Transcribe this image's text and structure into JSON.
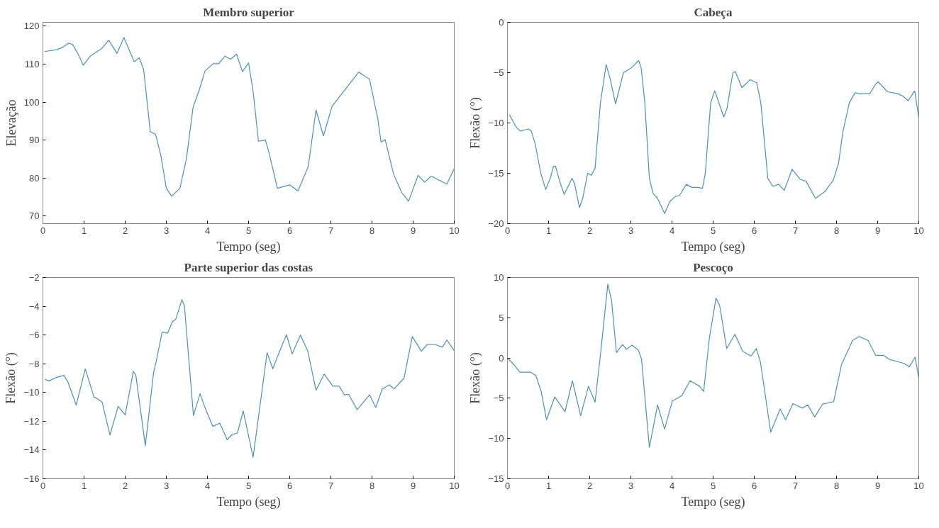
{
  "chart_data": [
    {
      "type": "line",
      "title": "Membro superior",
      "xlabel": "Tempo (seg)",
      "ylabel": "Elevação",
      "xlim": [
        0,
        10
      ],
      "xticks": [
        0,
        1,
        2,
        3,
        4,
        5,
        6,
        7,
        8,
        9,
        10
      ],
      "ylim": [
        68,
        121
      ],
      "yticks": [
        70,
        80,
        90,
        100,
        110,
        120
      ],
      "color": "#4a90b8",
      "x": [
        0.04,
        0.33,
        0.46,
        0.62,
        0.72,
        0.85,
        0.98,
        1.15,
        1.44,
        1.6,
        1.8,
        1.97,
        2.22,
        2.34,
        2.45,
        2.61,
        2.74,
        2.87,
        3.0,
        3.13,
        3.33,
        3.49,
        3.65,
        3.81,
        3.94,
        4.14,
        4.27,
        4.43,
        4.56,
        4.71,
        4.85,
        5.0,
        5.11,
        5.24,
        5.41,
        5.5,
        5.7,
        6.0,
        6.2,
        6.45,
        6.64,
        6.82,
        7.03,
        7.36,
        7.68,
        7.94,
        8.14,
        8.22,
        8.32,
        8.53,
        8.72,
        8.89,
        9.12,
        9.28,
        9.44,
        9.82,
        10.0
      ],
      "values": [
        113.3,
        113.8,
        114.3,
        115.5,
        115.2,
        112.8,
        109.7,
        112.1,
        114.2,
        116.3,
        112.8,
        117,
        110.6,
        111.7,
        108.5,
        92.2,
        91.5,
        85.8,
        77.3,
        75.2,
        77.3,
        85.1,
        98.6,
        103.5,
        108.2,
        110.1,
        110.1,
        112.1,
        111.3,
        112.6,
        108,
        110.3,
        102.8,
        89.7,
        90,
        86.5,
        77.3,
        78.2,
        76.6,
        83,
        97.9,
        91.1,
        98.9,
        103.5,
        107.9,
        106,
        95.7,
        89.5,
        90.1,
        80.9,
        76.2,
        73.9,
        80.7,
        78.9,
        80.5,
        78.4,
        82.5
      ]
    },
    {
      "type": "line",
      "title": "Cabeça",
      "xlabel": "Tempo (seg)",
      "ylabel": "Flexão (°)",
      "xlim": [
        0,
        10
      ],
      "xticks": [
        0,
        1,
        2,
        3,
        4,
        5,
        6,
        7,
        8,
        9,
        10
      ],
      "ylim": [
        -20,
        0
      ],
      "yticks": [
        -20,
        -15,
        -10,
        -5,
        0
      ],
      "color": "#4a90b8",
      "x": [
        0.05,
        0.21,
        0.31,
        0.51,
        0.58,
        0.67,
        0.81,
        0.93,
        1.04,
        1.12,
        1.17,
        1.27,
        1.38,
        1.57,
        1.63,
        1.75,
        1.83,
        1.95,
        2.04,
        2.13,
        2.26,
        2.4,
        2.49,
        2.63,
        2.82,
        3.02,
        3.19,
        3.25,
        3.34,
        3.45,
        3.54,
        3.65,
        3.82,
        3.95,
        4.08,
        4.18,
        4.35,
        4.48,
        4.64,
        4.74,
        4.81,
        4.94,
        5.04,
        5.14,
        5.26,
        5.34,
        5.48,
        5.54,
        5.7,
        5.9,
        6.06,
        6.16,
        6.33,
        6.45,
        6.59,
        6.73,
        6.92,
        7.12,
        7.26,
        7.49,
        7.72,
        7.92,
        8.05,
        8.15,
        8.31,
        8.45,
        8.58,
        8.81,
        8.94,
        9.01,
        9.24,
        9.5,
        9.64,
        9.74,
        9.9,
        10.0
      ],
      "values": [
        -9.2,
        -10.4,
        -10.8,
        -10.6,
        -10.8,
        -12,
        -15,
        -16.6,
        -15.5,
        -14.3,
        -14.3,
        -15.8,
        -17.1,
        -15.5,
        -16,
        -18.4,
        -17.5,
        -15,
        -15.2,
        -14.5,
        -8,
        -4.2,
        -5.5,
        -8.1,
        -5,
        -4.5,
        -3.8,
        -4.5,
        -8,
        -15.5,
        -17,
        -17.5,
        -19,
        -17.8,
        -17.3,
        -17.2,
        -16.1,
        -16.4,
        -16.4,
        -16.5,
        -15,
        -8,
        -6.8,
        -8,
        -9.4,
        -8.5,
        -5,
        -4.9,
        -6.5,
        -5.7,
        -6,
        -8,
        -15.5,
        -16.3,
        -16.1,
        -16.7,
        -14.6,
        -15.6,
        -15.8,
        -17.5,
        -16.8,
        -15.7,
        -14,
        -11,
        -8,
        -7,
        -7.1,
        -7.1,
        -6.2,
        -5.9,
        -6.9,
        -7.1,
        -7.4,
        -7.8,
        -6.8,
        -9.5
      ]
    },
    {
      "type": "line",
      "title": "Parte superior das costas",
      "xlabel": "Tempo (seg)",
      "ylabel": "Flexão (°)",
      "xlim": [
        0,
        10
      ],
      "xticks": [
        0,
        1,
        2,
        3,
        4,
        5,
        6,
        7,
        8,
        9,
        10
      ],
      "ylim": [
        -16,
        -2
      ],
      "yticks": [
        -16,
        -14,
        -12,
        -10,
        -8,
        -6,
        -4,
        -2
      ],
      "color": "#4a90b8",
      "x": [
        0.05,
        0.15,
        0.32,
        0.51,
        0.61,
        0.81,
        1.03,
        1.24,
        1.34,
        1.44,
        1.63,
        1.83,
        2.0,
        2.2,
        2.26,
        2.49,
        2.69,
        2.75,
        2.9,
        3.03,
        3.15,
        3.23,
        3.38,
        3.44,
        3.66,
        3.82,
        3.94,
        4.13,
        4.3,
        4.48,
        4.6,
        4.73,
        4.87,
        5.11,
        5.45,
        5.59,
        5.78,
        5.92,
        6.06,
        6.26,
        6.44,
        6.64,
        6.84,
        7.05,
        7.2,
        7.33,
        7.43,
        7.64,
        7.94,
        8.09,
        8.25,
        8.42,
        8.54,
        8.78,
        8.98,
        9.2,
        9.34,
        9.54,
        9.71,
        9.82,
        10.0
      ],
      "values": [
        -9.09,
        -9.19,
        -8.96,
        -8.81,
        -9.28,
        -10.87,
        -8.35,
        -10.31,
        -10.46,
        -10.68,
        -12.96,
        -10.96,
        -11.56,
        -8.53,
        -8.81,
        -13.7,
        -8.63,
        -7.88,
        -5.79,
        -5.88,
        -5.08,
        -4.9,
        -3.55,
        -3.96,
        -11.61,
        -10.08,
        -11.05,
        -12.36,
        -12.13,
        -13.29,
        -12.92,
        -12.82,
        -11.28,
        -14.5,
        -7.23,
        -8.35,
        -6.95,
        -5.98,
        -7.32,
        -6.01,
        -7.13,
        -9.84,
        -8.72,
        -9.56,
        -9.56,
        -10.16,
        -10.12,
        -11.2,
        -10.16,
        -11.05,
        -9.75,
        -9.47,
        -9.75,
        -9,
        -6.11,
        -7.13,
        -6.67,
        -6.67,
        -6.85,
        -6.35,
        -7.1
      ]
    },
    {
      "type": "line",
      "title": "Pescoço",
      "xlabel": "Tempo (seg)",
      "ylabel": "Flexão (°)",
      "xlim": [
        0,
        10
      ],
      "xticks": [
        0,
        1,
        2,
        3,
        4,
        5,
        6,
        7,
        8,
        9,
        10
      ],
      "ylim": [
        -15,
        10
      ],
      "yticks": [
        -15,
        -10,
        -5,
        0,
        5,
        10
      ],
      "color": "#4a90b8",
      "x": [
        0.03,
        0.16,
        0.3,
        0.56,
        0.69,
        0.82,
        0.95,
        1.15,
        1.4,
        1.58,
        1.78,
        1.97,
        2.13,
        2.27,
        2.44,
        2.53,
        2.65,
        2.8,
        2.89,
        3.03,
        3.18,
        3.26,
        3.45,
        3.65,
        3.82,
        4.01,
        4.24,
        4.44,
        4.67,
        4.77,
        4.91,
        5.07,
        5.16,
        5.33,
        5.53,
        5.72,
        5.92,
        6.05,
        6.15,
        6.4,
        6.63,
        6.76,
        6.94,
        7.17,
        7.3,
        7.47,
        7.66,
        7.93,
        8.12,
        8.39,
        8.55,
        8.77,
        8.95,
        9.14,
        9.28,
        9.64,
        9.77,
        9.91,
        10.0
      ],
      "values": [
        -0.17,
        -0.83,
        -1.77,
        -1.77,
        -2.17,
        -4.17,
        -7.67,
        -4.83,
        -6.67,
        -2.83,
        -7.17,
        -3.5,
        -5.5,
        0.83,
        9.17,
        7.17,
        0.67,
        1.67,
        1.07,
        1.6,
        1.0,
        -0.17,
        -11.1,
        -5.83,
        -8.83,
        -5.33,
        -4.67,
        -2.83,
        -3.5,
        -4.17,
        2.5,
        7.43,
        6.5,
        1.17,
        2.93,
        0.83,
        0.23,
        1.17,
        -0.5,
        -9.23,
        -6.33,
        -7.67,
        -5.67,
        -6.23,
        -5.83,
        -7.33,
        -5.73,
        -5.43,
        -0.83,
        2.17,
        2.67,
        2.17,
        0.33,
        0.33,
        -0.17,
        -0.67,
        -1.1,
        0.1,
        -2.5
      ]
    }
  ]
}
